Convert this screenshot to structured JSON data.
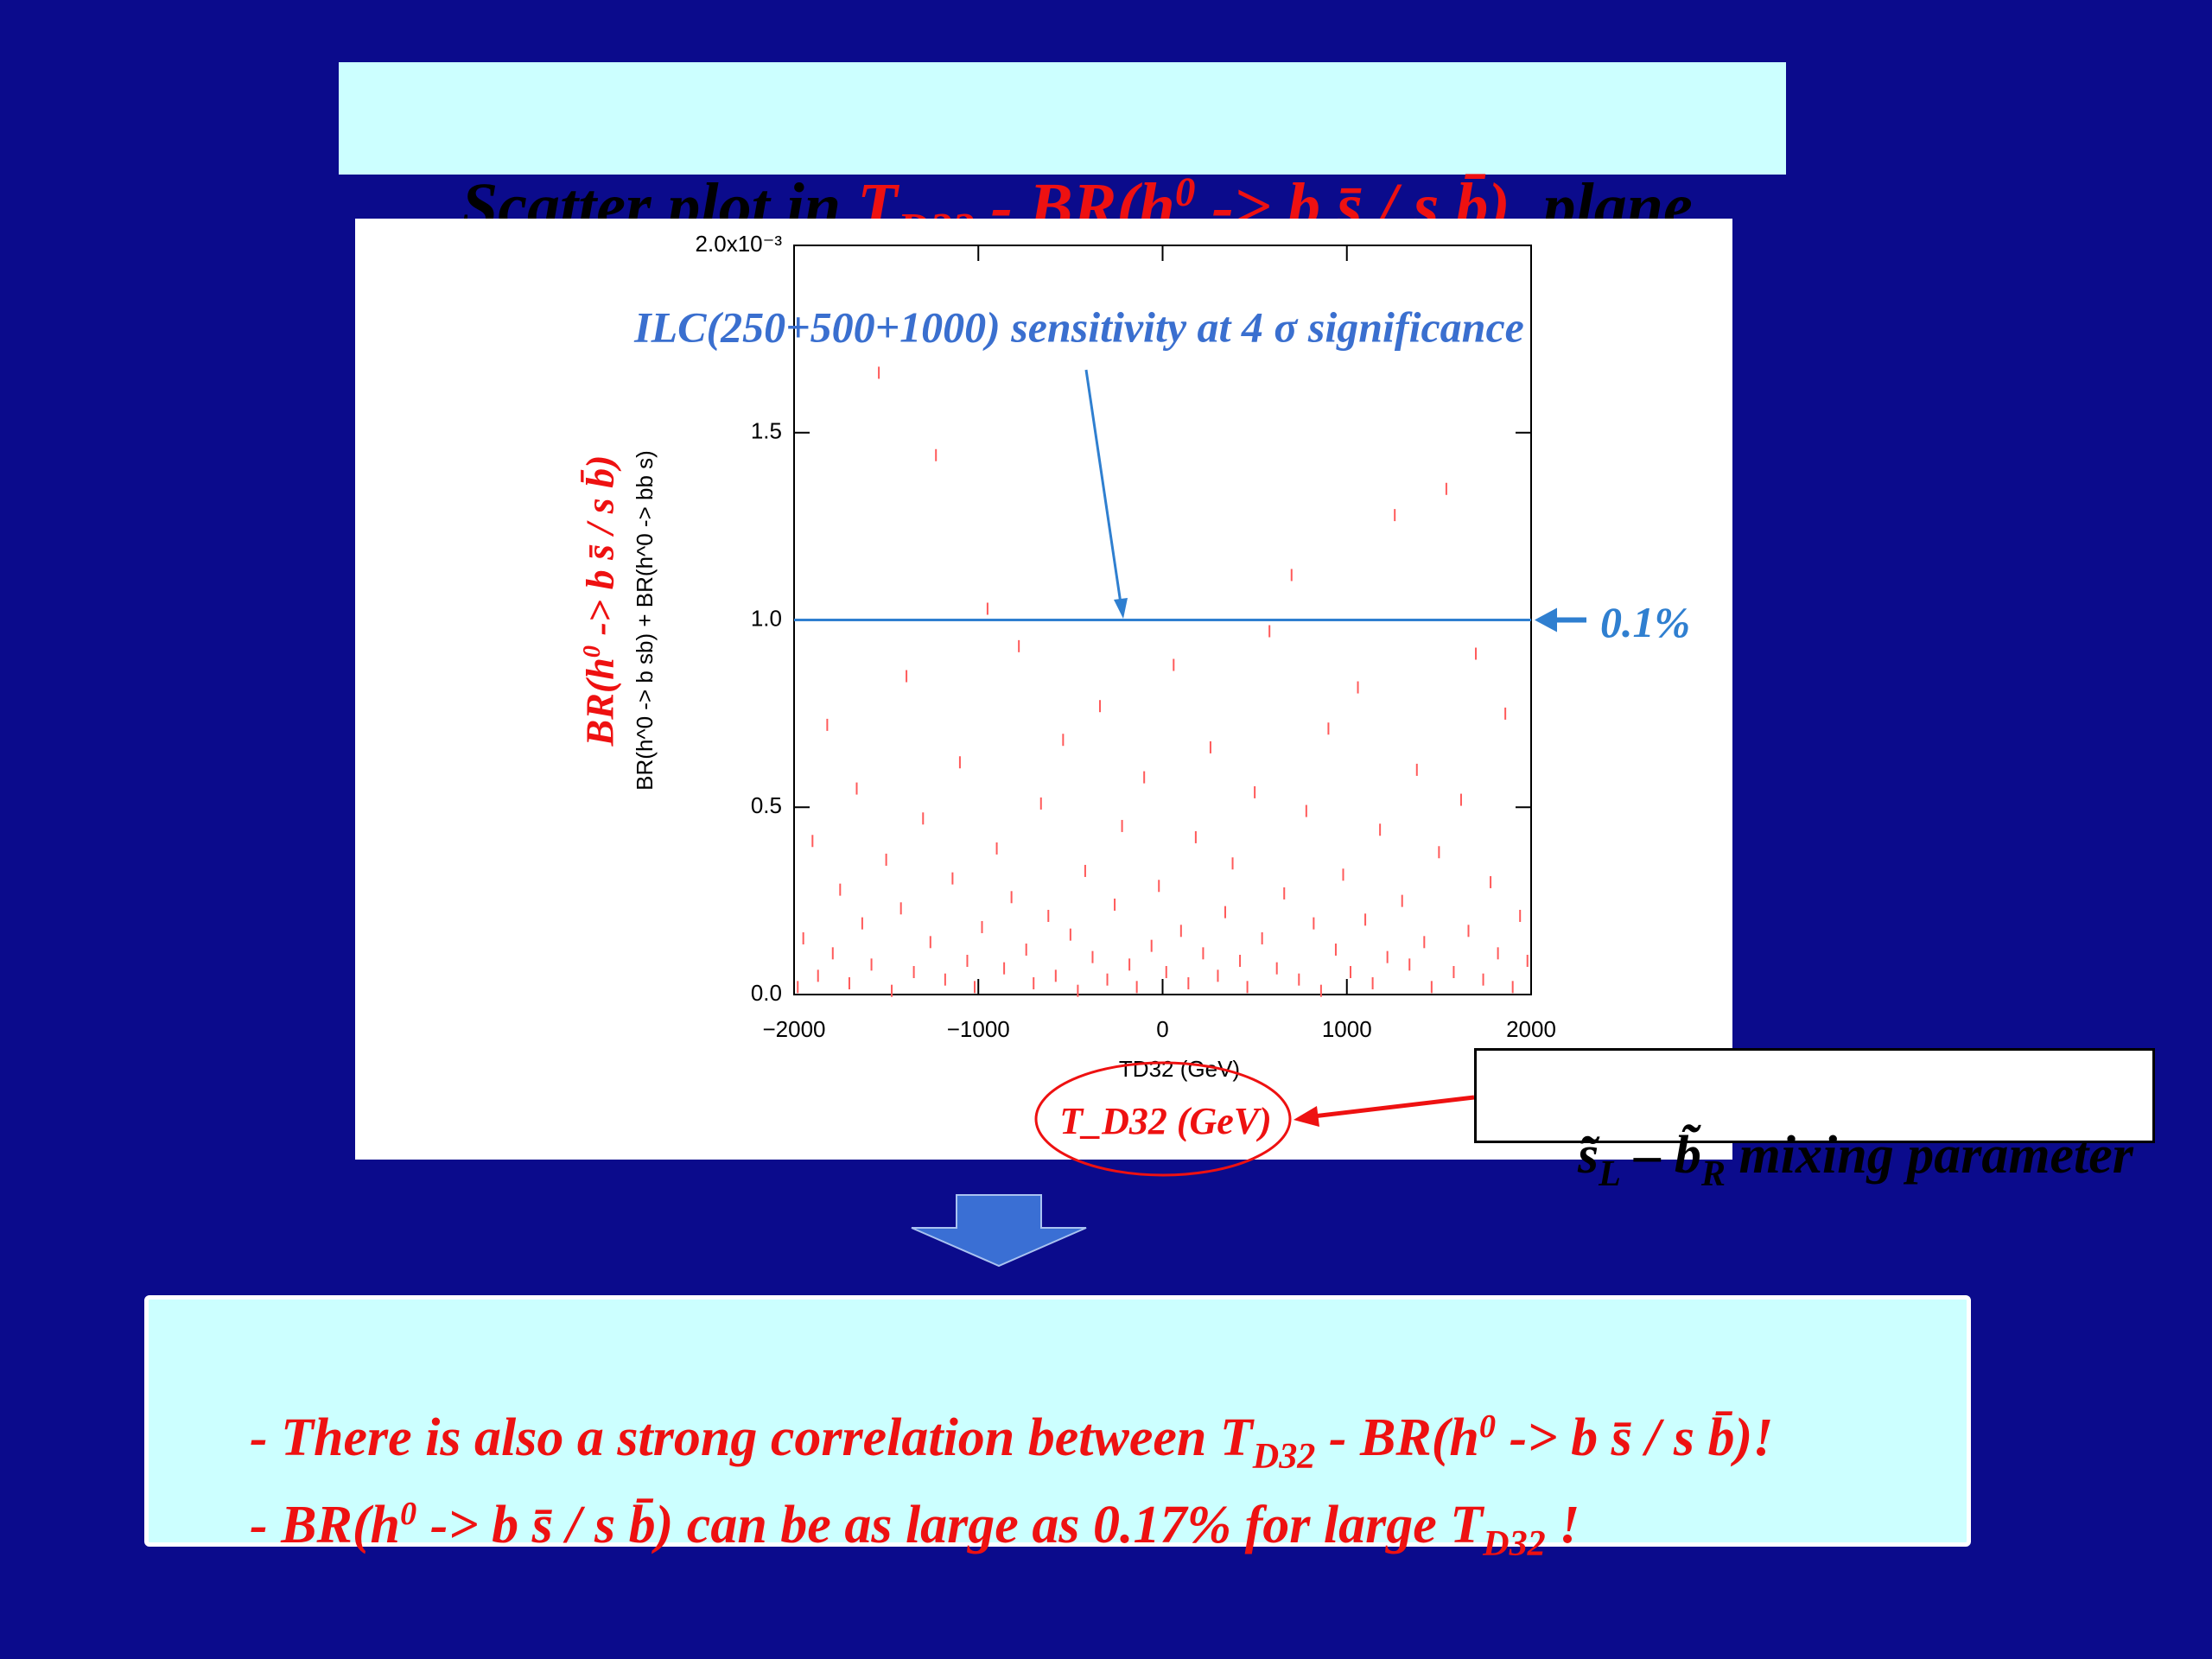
{
  "title": [
    "Scatter plot in ",
    "T",
    "D32",
    " - BR(h",
    "0",
    " -> b s̄ / s b̄)",
    "  plane"
  ],
  "chart_data": {
    "type": "scatter",
    "annotation": "ILC(250+500+1000) sensitivity at 4 σ significance",
    "xlabel": "TD32 (GeV)",
    "ylabel": "BR(h^0 -> b sb) + BR(h^0 -> bb s)",
    "color": "#ff5a5a",
    "x": [
      -1980,
      -1950,
      -1900,
      -1870,
      -1820,
      -1790,
      -1750,
      -1700,
      -1660,
      -1630,
      -1580,
      -1540,
      -1500,
      -1470,
      -1420,
      -1390,
      -1350,
      -1300,
      -1260,
      -1230,
      -1180,
      -1140,
      -1100,
      -1060,
      -1020,
      -980,
      -950,
      -900,
      -860,
      -820,
      -780,
      -740,
      -700,
      -660,
      -620,
      -580,
      -540,
      -500,
      -460,
      -420,
      -380,
      -340,
      -300,
      -260,
      -220,
      -180,
      -140,
      -100,
      -60,
      -20,
      20,
      60,
      100,
      140,
      180,
      220,
      260,
      300,
      340,
      380,
      420,
      460,
      500,
      540,
      580,
      620,
      660,
      700,
      740,
      780,
      820,
      860,
      900,
      940,
      980,
      1020,
      1060,
      1100,
      1140,
      1180,
      1220,
      1260,
      1300,
      1340,
      1380,
      1420,
      1460,
      1500,
      1540,
      1580,
      1620,
      1660,
      1700,
      1740,
      1780,
      1820,
      1860,
      1900,
      1940,
      1980
    ],
    "values": [
      0.02,
      0.15,
      0.41,
      0.05,
      0.72,
      0.11,
      0.28,
      0.03,
      0.55,
      0.19,
      0.08,
      1.66,
      0.36,
      0.01,
      0.23,
      0.85,
      0.06,
      0.47,
      0.14,
      1.44,
      0.04,
      0.31,
      0.62,
      0.09,
      0.02,
      0.18,
      1.03,
      0.39,
      0.07,
      0.26,
      0.93,
      0.12,
      0.03,
      0.51,
      0.21,
      0.05,
      0.68,
      0.16,
      0.01,
      0.33,
      0.1,
      0.77,
      0.04,
      0.24,
      0.45,
      0.08,
      0.02,
      0.58,
      0.13,
      0.29,
      0.06,
      0.88,
      0.17,
      0.03,
      0.42,
      0.11,
      0.66,
      0.05,
      0.22,
      0.35,
      0.09,
      0.02,
      0.54,
      0.15,
      0.97,
      0.07,
      0.27,
      1.12,
      0.04,
      0.49,
      0.19,
      0.01,
      0.71,
      0.12,
      0.32,
      0.06,
      0.82,
      0.2,
      0.03,
      0.44,
      0.1,
      1.28,
      0.25,
      0.08,
      0.6,
      0.14,
      0.02,
      0.38,
      1.35,
      0.06,
      0.52,
      0.17,
      0.91,
      0.04,
      0.3,
      0.11,
      0.75,
      0.02,
      0.21,
      0.09
    ],
    "xlim": [
      -2000,
      2000
    ],
    "ylim": [
      0,
      2
    ],
    "xticks": [
      {
        "value": -2000,
        "label": "−2000"
      },
      {
        "value": -1000,
        "label": "−1000"
      },
      0,
      1000,
      2000
    ],
    "yticks": [
      {
        "value": 0,
        "label": "0.0"
      },
      0.5,
      {
        "value": 1,
        "label": "1.0"
      },
      1.5,
      {
        "value": 2,
        "label": "2.0x10⁻³"
      }
    ],
    "hline": 1,
    "hline_label": "0.1%",
    "hline_color": "#2f7fd0"
  },
  "overlay_ylabel": [
    "BR(h",
    "0",
    " -> b s̄ / s b̄)"
  ],
  "overlay_xlabel": "T_D32 (GeV)",
  "mixing": [
    "s̃",
    "L",
    " – b̃",
    "R",
    " mixing parameter"
  ],
  "bullets": [
    [
      "- There is also a strong correlation between ",
      "T",
      "D32",
      " - BR(h",
      "0",
      " -> b s̄ / s b̄)!"
    ],
    [
      "- BR(h",
      "0",
      " -> b s̄ / s b̄) can be as large as 0.17% for large ",
      "T",
      "D32",
      " !"
    ]
  ]
}
